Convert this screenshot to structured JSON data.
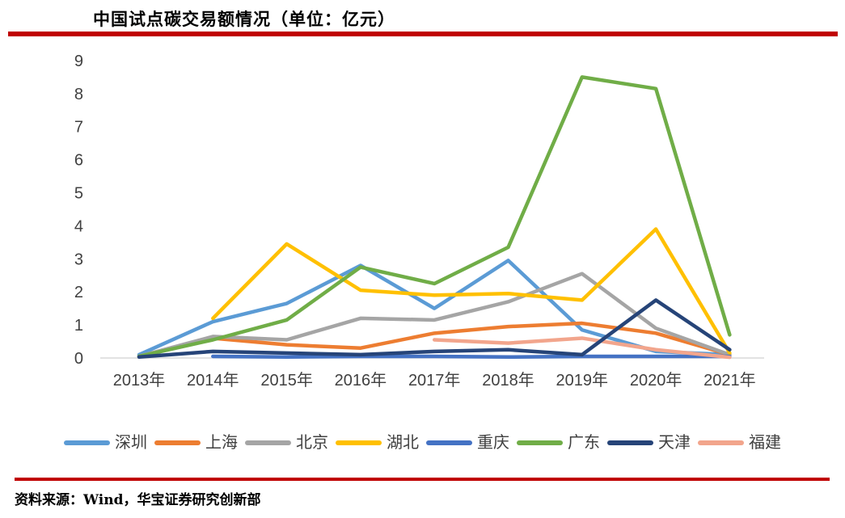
{
  "title": "中国试点碳交易额情况（单位：亿元）",
  "source_note": "资料来源：Wind，华宝证券研究创新部",
  "accent_color": "#C00000",
  "axis_text_color": "#404040",
  "axis_line_color": "#D9D9D9",
  "chart_data": {
    "type": "line",
    "title": "中国试点碳交易额情况（单位：亿元）",
    "unit": "亿元",
    "categories": [
      "2013年",
      "2014年",
      "2015年",
      "2016年",
      "2017年",
      "2018年",
      "2019年",
      "2020年",
      "2021年"
    ],
    "series": [
      {
        "name": "深圳",
        "color": "#5B9BD5",
        "values": [
          0.1,
          1.1,
          1.65,
          2.8,
          1.5,
          2.95,
          0.85,
          0.2,
          0.1
        ]
      },
      {
        "name": "上海",
        "color": "#ED7D31",
        "values": [
          0.05,
          0.6,
          0.4,
          0.3,
          0.75,
          0.95,
          1.05,
          0.75,
          0.1
        ]
      },
      {
        "name": "北京",
        "color": "#A5A5A5",
        "values": [
          0.05,
          0.65,
          0.55,
          1.2,
          1.15,
          1.7,
          2.55,
          0.9,
          0.1
        ]
      },
      {
        "name": "湖北",
        "color": "#FFC000",
        "values": [
          null,
          1.2,
          3.45,
          2.05,
          1.9,
          1.95,
          1.75,
          3.9,
          0.15
        ]
      },
      {
        "name": "重庆",
        "color": "#4472C4",
        "values": [
          null,
          0.05,
          0.03,
          0.05,
          0.05,
          0.03,
          0.05,
          0.05,
          0.05
        ]
      },
      {
        "name": "广东",
        "color": "#70AD47",
        "values": [
          0.05,
          0.55,
          1.15,
          2.75,
          2.25,
          3.35,
          8.5,
          8.15,
          0.7
        ]
      },
      {
        "name": "天津",
        "color": "#264478",
        "values": [
          0.03,
          0.2,
          0.15,
          0.1,
          0.2,
          0.25,
          0.1,
          1.75,
          0.25
        ]
      },
      {
        "name": "福建",
        "color": "#F2A58C",
        "values": [
          null,
          null,
          null,
          null,
          0.55,
          0.45,
          0.6,
          0.25,
          0.02
        ]
      }
    ],
    "ylim": [
      0,
      9
    ],
    "ytick_step": 1,
    "yticks": [
      0,
      1,
      2,
      3,
      4,
      5,
      6,
      7,
      8,
      9
    ],
    "grid": false,
    "legend_position": "bottom",
    "draw_order": [
      0,
      1,
      2,
      3,
      4,
      5,
      7,
      6
    ]
  }
}
